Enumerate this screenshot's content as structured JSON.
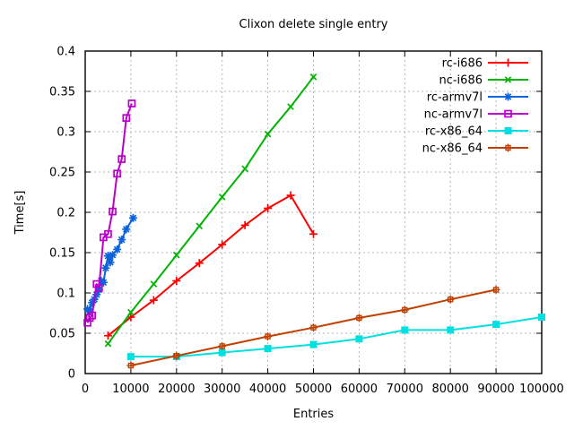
{
  "chart_data": {
    "type": "line",
    "title": "Clixon delete single entry",
    "xlabel": "Entries",
    "ylabel": "Time[s]",
    "xlim": [
      0,
      100000
    ],
    "ylim": [
      0,
      0.4
    ],
    "grid": true,
    "legend_position": "top-right-inside",
    "xtick_values": [
      0,
      10000,
      20000,
      30000,
      40000,
      50000,
      60000,
      70000,
      80000,
      90000,
      100000
    ],
    "xtick_labels": [
      "0",
      "10000",
      "20000",
      "30000",
      "40000",
      "50000",
      "60000",
      "70000",
      "80000",
      "90000",
      "100000"
    ],
    "ytick_values": [
      0,
      0.05,
      0.1,
      0.15,
      0.2,
      0.25,
      0.3,
      0.35,
      0.4
    ],
    "ytick_labels": [
      "0",
      "0.05",
      "0.1",
      "0.15",
      "0.2",
      "0.25",
      "0.3",
      "0.35",
      "0.4"
    ],
    "grid_color": "#b5b5b5",
    "series": [
      {
        "name": "rc-i686",
        "color": "#ff0000",
        "marker": "plus",
        "points": [
          [
            5000,
            0.047
          ],
          [
            10000,
            0.07
          ],
          [
            15000,
            0.091
          ],
          [
            20000,
            0.115
          ],
          [
            25000,
            0.137
          ],
          [
            30000,
            0.16
          ],
          [
            35000,
            0.184
          ],
          [
            40000,
            0.205
          ],
          [
            45000,
            0.221
          ],
          [
            50000,
            0.173
          ]
        ]
      },
      {
        "name": "nc-i686",
        "color": "#00b400",
        "marker": "cross",
        "points": [
          [
            5000,
            0.037
          ],
          [
            10000,
            0.076
          ],
          [
            15000,
            0.111
          ],
          [
            20000,
            0.147
          ],
          [
            25000,
            0.183
          ],
          [
            30000,
            0.219
          ],
          [
            35000,
            0.254
          ],
          [
            40000,
            0.297
          ],
          [
            45000,
            0.331
          ],
          [
            50000,
            0.368
          ]
        ]
      },
      {
        "name": "rc-armv7l",
        "color": "#0b62dc",
        "marker": "asterisk",
        "points": [
          [
            500,
            0.08
          ],
          [
            1000,
            0.077
          ],
          [
            1500,
            0.088
          ],
          [
            2000,
            0.092
          ],
          [
            2500,
            0.098
          ],
          [
            3000,
            0.104
          ],
          [
            3500,
            0.115
          ],
          [
            4000,
            0.113
          ],
          [
            4500,
            0.131
          ],
          [
            5000,
            0.146
          ],
          [
            5500,
            0.138
          ],
          [
            6000,
            0.147
          ],
          [
            7000,
            0.154
          ],
          [
            8000,
            0.166
          ],
          [
            9000,
            0.179
          ],
          [
            10500,
            0.193
          ]
        ]
      },
      {
        "name": "nc-armv7l",
        "color": "#bb00cc",
        "marker": "square-open",
        "points": [
          [
            500,
            0.063
          ],
          [
            1000,
            0.069
          ],
          [
            1500,
            0.072
          ],
          [
            2500,
            0.111
          ],
          [
            3000,
            0.106
          ],
          [
            4000,
            0.169
          ],
          [
            5000,
            0.173
          ],
          [
            6000,
            0.201
          ],
          [
            7000,
            0.248
          ],
          [
            8000,
            0.266
          ],
          [
            9000,
            0.317
          ],
          [
            10200,
            0.335
          ]
        ]
      },
      {
        "name": "rc-x86_64",
        "color": "#00e0e0",
        "marker": "square-filled",
        "points": [
          [
            10000,
            0.021
          ],
          [
            20000,
            0.021
          ],
          [
            30000,
            0.026
          ],
          [
            40000,
            0.031
          ],
          [
            50000,
            0.036
          ],
          [
            60000,
            0.043
          ],
          [
            70000,
            0.054
          ],
          [
            80000,
            0.054
          ],
          [
            90000,
            0.061
          ],
          [
            100000,
            0.07
          ]
        ]
      },
      {
        "name": "nc-x86_64",
        "color": "#c04000",
        "marker": "square-plus",
        "points": [
          [
            10000,
            0.01
          ],
          [
            20000,
            0.022
          ],
          [
            30000,
            0.034
          ],
          [
            40000,
            0.046
          ],
          [
            50000,
            0.057
          ],
          [
            60000,
            0.069
          ],
          [
            70000,
            0.079
          ],
          [
            80000,
            0.092
          ],
          [
            90000,
            0.104
          ]
        ]
      }
    ]
  }
}
